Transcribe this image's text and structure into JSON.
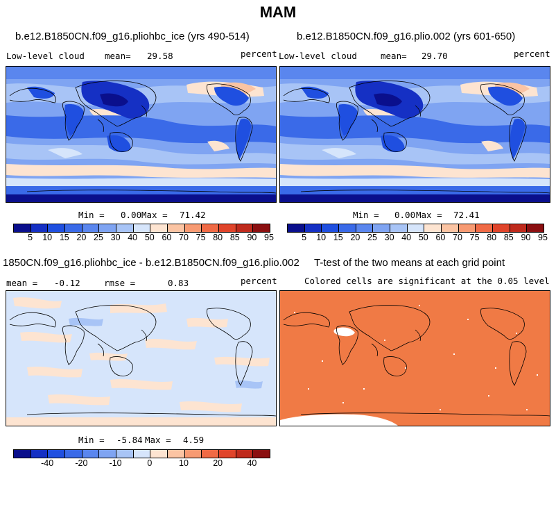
{
  "season": "MAM",
  "colors": {
    "cloud_scale": [
      "#0a0f8c",
      "#1530c4",
      "#1f4fe0",
      "#3a6ae8",
      "#5a86ee",
      "#7fa4f2",
      "#a8c4f6",
      "#d6e5fb",
      "#fde4d1",
      "#fbc4a3",
      "#f79a72",
      "#f06a45",
      "#e0442a",
      "#bf2a1c",
      "#8b0f10"
    ],
    "diff_scale": [
      "#0a0f8c",
      "#1530c4",
      "#1f4fe0",
      "#3a6ae8",
      "#5a86ee",
      "#7fa4f2",
      "#a8c4f6",
      "#d6e5fb",
      "#fde4d1",
      "#fbc4a3",
      "#f79a72",
      "#f06a45",
      "#e0442a",
      "#bf2a1c",
      "#8b0f10"
    ],
    "ttest_fill": "#f07a45"
  },
  "panels": {
    "top_left": {
      "title": "b.e12.B1850CN.f09_g16.pliohbc_ice (yrs 490-514)",
      "variable": "Low-level cloud",
      "mean_label": "mean=",
      "mean_value": "29.58",
      "units": "percent",
      "min_label": "Min =",
      "min_value": "0.00",
      "max_label": "Max =",
      "max_value": "71.42",
      "ticks": [
        "5",
        "10",
        "15",
        "20",
        "25",
        "30",
        "40",
        "50",
        "60",
        "70",
        "75",
        "80",
        "85",
        "90",
        "95"
      ]
    },
    "top_right": {
      "title": "b.e12.B1850CN.f09_g16.plio.002 (yrs 601-650)",
      "variable": "Low-level cloud",
      "mean_label": "mean=",
      "mean_value": "29.70",
      "units": "percent",
      "min_label": "Min =",
      "min_value": "0.00",
      "max_label": "Max =",
      "max_value": "72.41",
      "ticks": [
        "5",
        "10",
        "15",
        "20",
        "25",
        "30",
        "40",
        "50",
        "60",
        "70",
        "75",
        "80",
        "85",
        "90",
        "95"
      ]
    },
    "bottom_left": {
      "title": "1850CN.f09_g16.pliohbc_ice - b.e12.B1850CN.f09_g16.plio.002",
      "mean_label": "mean =",
      "mean_value": "-0.12",
      "rmse_label": "rmse =",
      "rmse_value": "0.83",
      "units": "percent",
      "min_label": "Min =",
      "min_value": "-5.84",
      "max_label": "Max =",
      "max_value": "4.59",
      "ticks": [
        "-40",
        "-20",
        "-10",
        "0",
        "10",
        "20",
        "40"
      ]
    },
    "bottom_right": {
      "title": "T-test of the two means at each grid point",
      "note": "Colored cells are significant at the 0.05 level"
    }
  }
}
